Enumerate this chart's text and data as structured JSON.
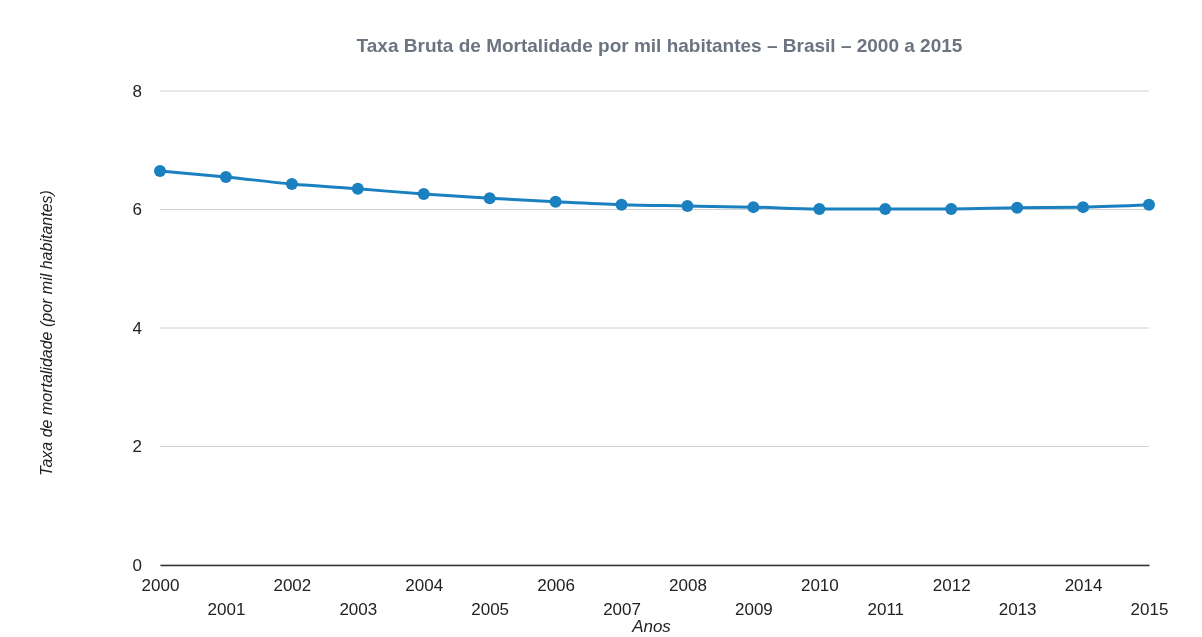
{
  "chart_data": {
    "type": "line",
    "title": "Taxa Bruta de Mortalidade por mil habitantes – Brasil – 2000 a 2015",
    "xlabel": "Anos",
    "ylabel": "Taxa de mortalidade (por mil habitantes)",
    "categories": [
      "2000",
      "2001",
      "2002",
      "2003",
      "2004",
      "2005",
      "2006",
      "2007",
      "2008",
      "2009",
      "2010",
      "2011",
      "2012",
      "2013",
      "2014",
      "2015"
    ],
    "series": [
      {
        "color": "#1a80c0",
        "values": [
          6.65,
          6.55,
          6.43,
          6.35,
          6.26,
          6.19,
          6.13,
          6.08,
          6.06,
          6.04,
          6.01,
          6.01,
          6.01,
          6.03,
          6.04,
          6.08
        ]
      }
    ],
    "ylim": [
      0,
      8
    ],
    "yticks": [
      0,
      2,
      4,
      6,
      8
    ],
    "grid": "y",
    "marker": "circle",
    "line_style": "solid",
    "legend": false
  }
}
